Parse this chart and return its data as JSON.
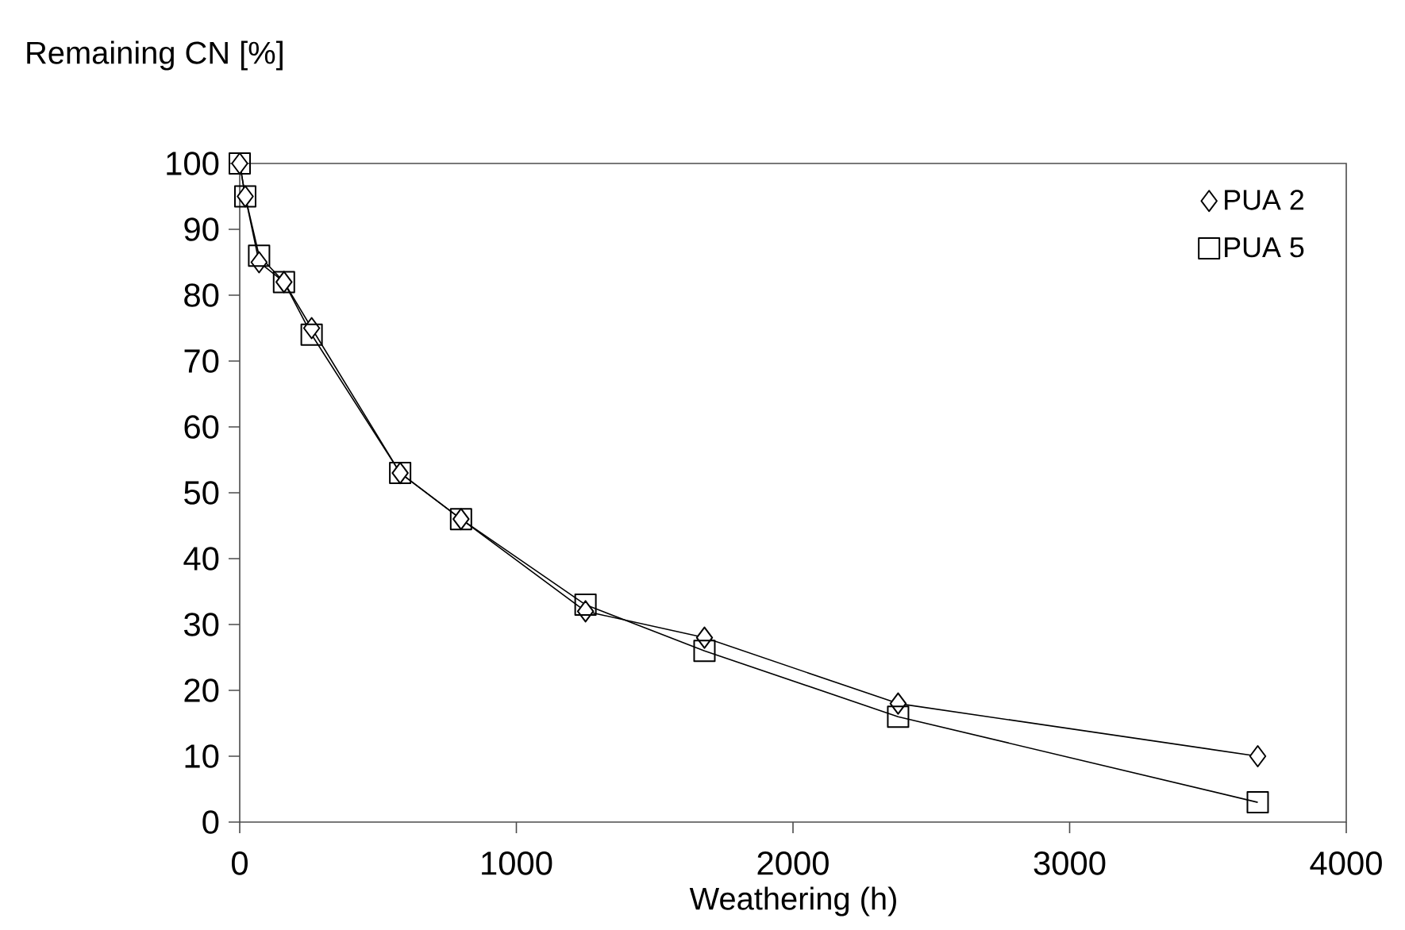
{
  "chart_data": {
    "type": "line",
    "xlabel": "Weathering (h)",
    "ylabel": "Remaining CN [%]",
    "x": [
      0,
      20,
      70,
      160,
      260,
      580,
      800,
      1250,
      1680,
      2380,
      3680
    ],
    "series": [
      {
        "name": "PUA 2",
        "color": "#000000",
        "marker": "diamond",
        "values": [
          100,
          95,
          85,
          82,
          75,
          53,
          46,
          32,
          28,
          18,
          10
        ]
      },
      {
        "name": "PUA 5",
        "color": "#000000",
        "marker": "square",
        "values": [
          100,
          95,
          86,
          82,
          74,
          53,
          46,
          33,
          26,
          16,
          3
        ]
      }
    ],
    "xlim": [
      0,
      4000
    ],
    "xticks": [
      0,
      1000,
      2000,
      3000,
      4000
    ],
    "ylim": [
      0,
      100
    ],
    "yticks": [
      0,
      10,
      20,
      30,
      40,
      50,
      60,
      70,
      80,
      90,
      100
    ],
    "grid": false,
    "legend": "top right",
    "line_style": "solid"
  }
}
